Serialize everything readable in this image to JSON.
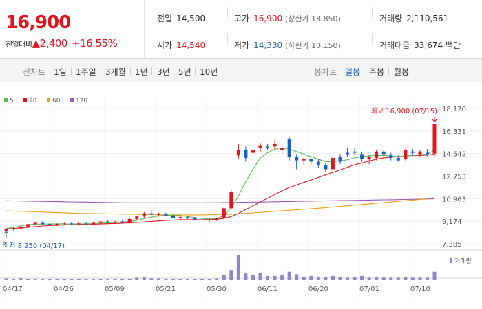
{
  "summary": {
    "price": "16,900",
    "change_label": "전일대비",
    "change_arrow": "▲",
    "change_value": "2,400",
    "change_pct": "+16.55%",
    "prev_close_label": "전일",
    "prev_close": "14,500",
    "open_label": "시가",
    "open": "14,540",
    "high_label": "고가",
    "high": "16,900",
    "upper_limit": "(상한가 18,850)",
    "low_label": "저가",
    "low": "14,330",
    "lower_limit": "(하한가 10,150)",
    "volume_label": "거래량",
    "volume": "2,110,561",
    "amount_label": "거래대금",
    "amount": "33,674 백만"
  },
  "toolbar": {
    "line_label": "선차트",
    "line_periods": [
      "1일",
      "1주일",
      "3개월",
      "1년",
      "3년",
      "5년",
      "10년"
    ],
    "candle_label": "봉차트",
    "candle_periods": [
      "일봉",
      "주봉",
      "월봉"
    ],
    "candle_selected": "일봉"
  },
  "colors": {
    "up": "#e2141d",
    "down": "#1a5fc1",
    "ma5": "#5cb85c",
    "ma20": "#e2141d",
    "ma60": "#f39c12",
    "ma120": "#9b59b6"
  },
  "chart_data": {
    "type": "candlestick",
    "legend": [
      "5",
      "20",
      "60",
      "120"
    ],
    "y_ticks": [
      "18,120",
      "16,331",
      "14,542",
      "12,753",
      "10,963",
      "9,174",
      "7,385"
    ],
    "ylim": [
      7385,
      18120
    ],
    "x_ticks": [
      "04/17",
      "04/26",
      "05/09",
      "05/21",
      "05/30",
      "06/11",
      "06/20",
      "07/01",
      "07/10"
    ],
    "high_annotation": "최고 16,900 (07/15)",
    "low_annotation": "최저 8,250 (04/17)",
    "volume_label": "거래량",
    "candles": [
      {
        "o": 8400,
        "h": 8600,
        "l": 8250,
        "c": 8550
      },
      {
        "o": 8550,
        "h": 8700,
        "l": 8450,
        "c": 8600
      },
      {
        "o": 8600,
        "h": 8800,
        "l": 8500,
        "c": 8750
      },
      {
        "o": 8750,
        "h": 9000,
        "l": 8650,
        "c": 8950
      },
      {
        "o": 8950,
        "h": 9100,
        "l": 8850,
        "c": 9050
      },
      {
        "o": 9050,
        "h": 9150,
        "l": 8900,
        "c": 8950
      },
      {
        "o": 8950,
        "h": 9050,
        "l": 8850,
        "c": 8900
      },
      {
        "o": 8900,
        "h": 9000,
        "l": 8800,
        "c": 8950
      },
      {
        "o": 8950,
        "h": 9050,
        "l": 8850,
        "c": 9000
      },
      {
        "o": 9000,
        "h": 9100,
        "l": 8900,
        "c": 8950
      },
      {
        "o": 8950,
        "h": 9050,
        "l": 8850,
        "c": 9000
      },
      {
        "o": 9000,
        "h": 9100,
        "l": 8900,
        "c": 8950
      },
      {
        "o": 8950,
        "h": 9100,
        "l": 8850,
        "c": 9050
      },
      {
        "o": 9050,
        "h": 9200,
        "l": 8950,
        "c": 9150
      },
      {
        "o": 9150,
        "h": 9250,
        "l": 9000,
        "c": 9100
      },
      {
        "o": 9100,
        "h": 9200,
        "l": 9000,
        "c": 9150
      },
      {
        "o": 9150,
        "h": 9300,
        "l": 9050,
        "c": 9050
      },
      {
        "o": 9050,
        "h": 9400,
        "l": 9000,
        "c": 9350
      },
      {
        "o": 9350,
        "h": 9600,
        "l": 9250,
        "c": 9550
      },
      {
        "o": 9550,
        "h": 9900,
        "l": 9450,
        "c": 9800
      },
      {
        "o": 9800,
        "h": 10050,
        "l": 9650,
        "c": 9700
      },
      {
        "o": 9700,
        "h": 9850,
        "l": 9550,
        "c": 9750
      },
      {
        "o": 9750,
        "h": 9850,
        "l": 9550,
        "c": 9600
      },
      {
        "o": 9600,
        "h": 9700,
        "l": 9400,
        "c": 9450
      },
      {
        "o": 9450,
        "h": 9600,
        "l": 9300,
        "c": 9500
      },
      {
        "o": 9500,
        "h": 9600,
        "l": 9350,
        "c": 9400
      },
      {
        "o": 9400,
        "h": 9500,
        "l": 9250,
        "c": 9300
      },
      {
        "o": 9300,
        "h": 9400,
        "l": 9200,
        "c": 9250
      },
      {
        "o": 9250,
        "h": 9400,
        "l": 9150,
        "c": 9300
      },
      {
        "o": 9300,
        "h": 9450,
        "l": 9200,
        "c": 9400
      },
      {
        "o": 9400,
        "h": 10300,
        "l": 9350,
        "c": 10200
      },
      {
        "o": 10200,
        "h": 11700,
        "l": 10100,
        "c": 11500
      },
      {
        "o": 14400,
        "h": 15300,
        "l": 14100,
        "c": 14800
      },
      {
        "o": 14800,
        "h": 15100,
        "l": 13900,
        "c": 14200
      },
      {
        "o": 14600,
        "h": 15000,
        "l": 14200,
        "c": 14800
      },
      {
        "o": 15000,
        "h": 15400,
        "l": 14700,
        "c": 15200
      },
      {
        "o": 15100,
        "h": 15300,
        "l": 14800,
        "c": 15000
      },
      {
        "o": 15100,
        "h": 15600,
        "l": 14900,
        "c": 15300
      },
      {
        "o": 14800,
        "h": 15300,
        "l": 14400,
        "c": 15000
      },
      {
        "o": 15700,
        "h": 15900,
        "l": 14000,
        "c": 14300
      },
      {
        "o": 14300,
        "h": 14500,
        "l": 13300,
        "c": 14000
      },
      {
        "o": 14000,
        "h": 14300,
        "l": 13600,
        "c": 14100
      },
      {
        "o": 14100,
        "h": 14200,
        "l": 13600,
        "c": 13900
      },
      {
        "o": 13900,
        "h": 14100,
        "l": 13400,
        "c": 13600
      },
      {
        "o": 13600,
        "h": 13800,
        "l": 13100,
        "c": 13300
      },
      {
        "o": 13300,
        "h": 14400,
        "l": 13200,
        "c": 14200
      },
      {
        "o": 14300,
        "h": 14500,
        "l": 13700,
        "c": 13900
      },
      {
        "o": 14600,
        "h": 15000,
        "l": 14300,
        "c": 14500
      },
      {
        "o": 14700,
        "h": 15000,
        "l": 14400,
        "c": 14600
      },
      {
        "o": 14500,
        "h": 14700,
        "l": 13900,
        "c": 14100
      },
      {
        "o": 14100,
        "h": 14400,
        "l": 13700,
        "c": 14300
      },
      {
        "o": 14200,
        "h": 14800,
        "l": 14000,
        "c": 14700
      },
      {
        "o": 14700,
        "h": 14800,
        "l": 14200,
        "c": 14500
      },
      {
        "o": 14400,
        "h": 14600,
        "l": 14000,
        "c": 14200
      },
      {
        "o": 14200,
        "h": 14400,
        "l": 13900,
        "c": 14000
      },
      {
        "o": 14100,
        "h": 14900,
        "l": 14000,
        "c": 14800
      },
      {
        "o": 14700,
        "h": 14900,
        "l": 14400,
        "c": 14600
      },
      {
        "o": 14500,
        "h": 14800,
        "l": 14300,
        "c": 14700
      },
      {
        "o": 14600,
        "h": 14900,
        "l": 14330,
        "c": 14500
      },
      {
        "o": 14540,
        "h": 16900,
        "l": 14330,
        "c": 16900
      }
    ],
    "ma5": [
      8600,
      8700,
      8800,
      8900,
      8950,
      8950,
      8960,
      8970,
      8960,
      8950,
      8960,
      8970,
      8990,
      9020,
      9050,
      9080,
      9100,
      9150,
      9250,
      9380,
      9500,
      9600,
      9650,
      9650,
      9620,
      9550,
      9450,
      9400,
      9350,
      9380,
      9650,
      10200,
      11200,
      12300,
      13300,
      14200,
      14600,
      14900,
      15000,
      14900,
      14700,
      14500,
      14300,
      14100,
      13900,
      13900,
      13950,
      14050,
      14200,
      14300,
      14350,
      14400,
      14400,
      14350,
      14300,
      14350,
      14400,
      14450,
      14500,
      14800
    ],
    "ma20": [
      8550,
      8600,
      8650,
      8700,
      8750,
      8800,
      8830,
      8860,
      8880,
      8900,
      8910,
      8920,
      8940,
      8960,
      8980,
      9000,
      9020,
      9050,
      9080,
      9120,
      9160,
      9200,
      9240,
      9270,
      9290,
      9300,
      9300,
      9300,
      9310,
      9330,
      9400,
      9550,
      9800,
      10100,
      10400,
      10700,
      11000,
      11300,
      11600,
      11850,
      12050,
      12250,
      12450,
      12650,
      12850,
      13050,
      13250,
      13450,
      13650,
      13800,
      13950,
      14100,
      14200,
      14250,
      14300,
      14350,
      14380,
      14400,
      14420,
      14500
    ],
    "ma60": [
      10000,
      9980,
      9960,
      9940,
      9920,
      9900,
      9880,
      9860,
      9840,
      9820,
      9800,
      9790,
      9780,
      9770,
      9760,
      9750,
      9740,
      9730,
      9720,
      9710,
      9700,
      9690,
      9680,
      9680,
      9680,
      9680,
      9680,
      9680,
      9690,
      9700,
      9710,
      9730,
      9760,
      9800,
      9840,
      9880,
      9920,
      9960,
      10000,
      10040,
      10080,
      10120,
      10160,
      10200,
      10250,
      10300,
      10350,
      10400,
      10450,
      10500,
      10550,
      10600,
      10650,
      10700,
      10750,
      10800,
      10850,
      10900,
      10970,
      11050
    ],
    "ma120": [
      10800,
      10790,
      10780,
      10770,
      10760,
      10750,
      10740,
      10730,
      10720,
      10710,
      10700,
      10690,
      10680,
      10670,
      10660,
      10650,
      10640,
      10640,
      10640,
      10640,
      10640,
      10640,
      10640,
      10640,
      10640,
      10640,
      10640,
      10640,
      10640,
      10640,
      10650,
      10660,
      10670,
      10680,
      10690,
      10700,
      10710,
      10720,
      10730,
      10740,
      10750,
      10760,
      10770,
      10780,
      10790,
      10800,
      10810,
      10820,
      10830,
      10840,
      10850,
      10860,
      10870,
      10880,
      10890,
      10900,
      10910,
      10920,
      10940,
      10960
    ],
    "volume": [
      2,
      1,
      2,
      1,
      1,
      1,
      1,
      1,
      1,
      1,
      1,
      1,
      1,
      1,
      1,
      1,
      1,
      1,
      3,
      4,
      2,
      2,
      1,
      1,
      1,
      1,
      1,
      1,
      1,
      2,
      6,
      12,
      30,
      8,
      6,
      9,
      5,
      5,
      6,
      10,
      7,
      4,
      5,
      4,
      4,
      5,
      4,
      3,
      4,
      5,
      3,
      4,
      3,
      3,
      3,
      4,
      3,
      3,
      3,
      10
    ],
    "volume_max": 30
  }
}
